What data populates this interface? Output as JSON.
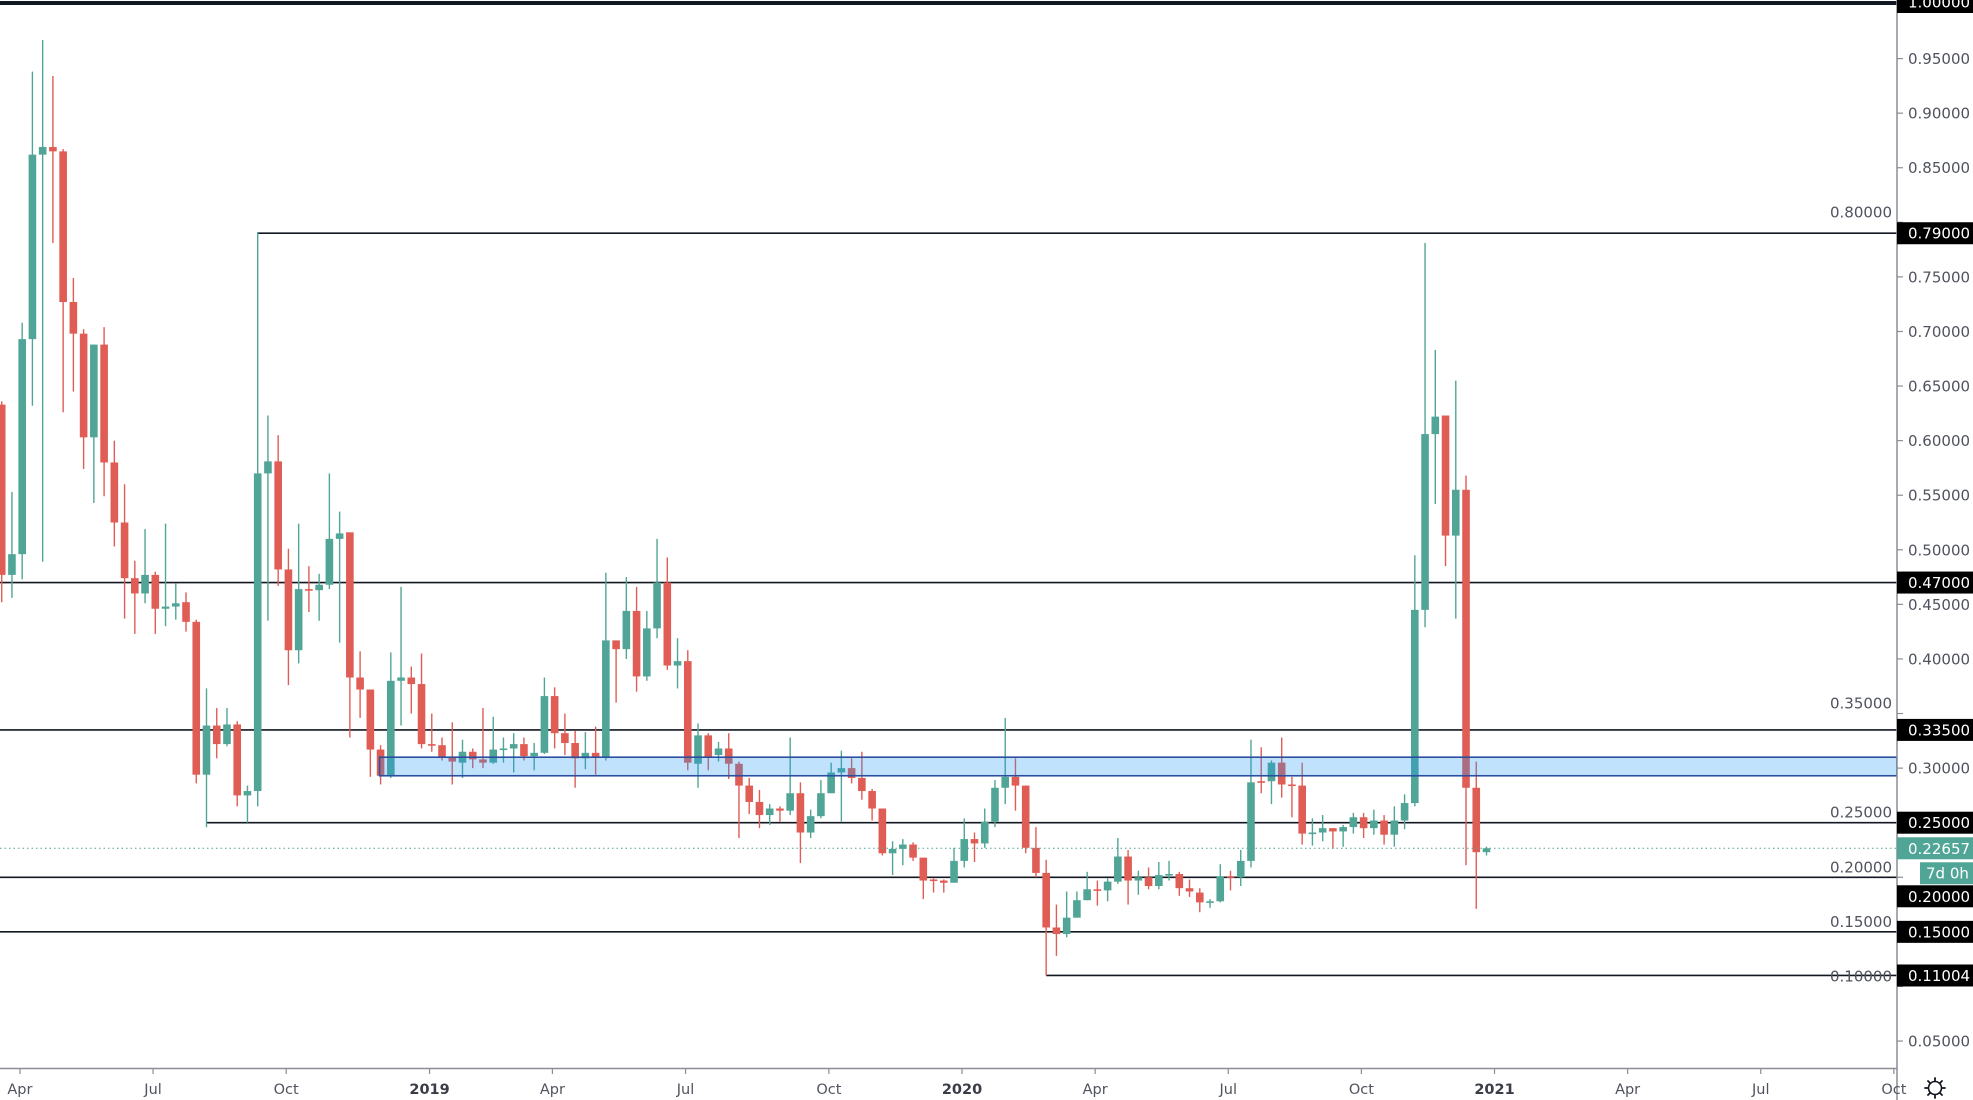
{
  "chart_data": {
    "type": "candlestick",
    "interval": "weekly",
    "colors": {
      "up": "#50a596",
      "down": "#e05d55",
      "line": "#131722",
      "zone_fill": "#2196f3",
      "zone_border": "#2b4f9e",
      "axis_text": "#50535e"
    },
    "ylim": [
      0.0,
      1.0
    ],
    "y_ticks": [
      "0.05000",
      "0.10000",
      "0.15000",
      "0.20000",
      "0.25000",
      "0.30000",
      "0.35000",
      "0.40000",
      "0.45000",
      "0.50000",
      "0.55000",
      "0.60000",
      "0.65000",
      "0.70000",
      "0.75000",
      "0.80000",
      "0.85000",
      "0.90000",
      "0.95000"
    ],
    "x_ticks": [
      {
        "label": "Apr",
        "week": 1,
        "year": false
      },
      {
        "label": "Jul",
        "week": 14,
        "year": false
      },
      {
        "label": "Oct",
        "week": 27,
        "year": false
      },
      {
        "label": "2019",
        "week": 41,
        "year": true
      },
      {
        "label": "Apr",
        "week": 53,
        "year": false
      },
      {
        "label": "Jul",
        "week": 66,
        "year": false
      },
      {
        "label": "Oct",
        "week": 80,
        "year": false
      },
      {
        "label": "2020",
        "week": 93,
        "year": true
      },
      {
        "label": "Apr",
        "week": 106,
        "year": false
      },
      {
        "label": "Jul",
        "week": 119,
        "year": false
      },
      {
        "label": "Oct",
        "week": 132,
        "year": false
      },
      {
        "label": "2021",
        "week": 145,
        "year": true
      },
      {
        "label": "Apr",
        "week": 158,
        "year": false
      },
      {
        "label": "Jul",
        "week": 171,
        "year": false
      },
      {
        "label": "Oct",
        "week": 184,
        "year": false
      }
    ],
    "candles_ohlc": [
      [
        0.633,
        0.636,
        0.452,
        0.477
      ],
      [
        0.477,
        0.553,
        0.456,
        0.496
      ],
      [
        0.496,
        0.708,
        0.473,
        0.693
      ],
      [
        0.693,
        0.938,
        0.632,
        0.862
      ],
      [
        0.862,
        0.967,
        0.489,
        0.869
      ],
      [
        0.869,
        0.934,
        0.781,
        0.865
      ],
      [
        0.865,
        0.867,
        0.626,
        0.727
      ],
      [
        0.727,
        0.749,
        0.645,
        0.698
      ],
      [
        0.698,
        0.702,
        0.574,
        0.603
      ],
      [
        0.603,
        0.688,
        0.543,
        0.688
      ],
      [
        0.688,
        0.704,
        0.549,
        0.58
      ],
      [
        0.58,
        0.6,
        0.503,
        0.525
      ],
      [
        0.525,
        0.56,
        0.437,
        0.474
      ],
      [
        0.474,
        0.49,
        0.423,
        0.46
      ],
      [
        0.46,
        0.519,
        0.451,
        0.477
      ],
      [
        0.477,
        0.48,
        0.423,
        0.446
      ],
      [
        0.446,
        0.524,
        0.43,
        0.448
      ],
      [
        0.448,
        0.469,
        0.436,
        0.451
      ],
      [
        0.452,
        0.461,
        0.425,
        0.434
      ],
      [
        0.434,
        0.436,
        0.286,
        0.294
      ],
      [
        0.294,
        0.373,
        0.246,
        0.339
      ],
      [
        0.339,
        0.355,
        0.309,
        0.322
      ],
      [
        0.322,
        0.355,
        0.32,
        0.34
      ],
      [
        0.34,
        0.343,
        0.265,
        0.275
      ],
      [
        0.275,
        0.284,
        0.25,
        0.279
      ],
      [
        0.279,
        0.791,
        0.265,
        0.57
      ],
      [
        0.57,
        0.623,
        0.435,
        0.581
      ],
      [
        0.581,
        0.605,
        0.467,
        0.482
      ],
      [
        0.482,
        0.501,
        0.376,
        0.408
      ],
      [
        0.408,
        0.524,
        0.396,
        0.464
      ],
      [
        0.464,
        0.485,
        0.443,
        0.463
      ],
      [
        0.463,
        0.478,
        0.435,
        0.468
      ],
      [
        0.468,
        0.57,
        0.464,
        0.51
      ],
      [
        0.51,
        0.535,
        0.415,
        0.515
      ],
      [
        0.516,
        0.516,
        0.328,
        0.383
      ],
      [
        0.383,
        0.407,
        0.346,
        0.372
      ],
      [
        0.372,
        0.372,
        0.292,
        0.317
      ],
      [
        0.317,
        0.321,
        0.285,
        0.293
      ],
      [
        0.293,
        0.406,
        0.291,
        0.38
      ],
      [
        0.38,
        0.466,
        0.339,
        0.383
      ],
      [
        0.383,
        0.393,
        0.35,
        0.377
      ],
      [
        0.377,
        0.405,
        0.318,
        0.322
      ],
      [
        0.322,
        0.35,
        0.315,
        0.321
      ],
      [
        0.321,
        0.328,
        0.307,
        0.31
      ],
      [
        0.31,
        0.342,
        0.285,
        0.306
      ],
      [
        0.305,
        0.326,
        0.291,
        0.315
      ],
      [
        0.315,
        0.318,
        0.3,
        0.308
      ],
      [
        0.308,
        0.355,
        0.3,
        0.305
      ],
      [
        0.305,
        0.347,
        0.304,
        0.317
      ],
      [
        0.317,
        0.328,
        0.305,
        0.318
      ],
      [
        0.318,
        0.332,
        0.296,
        0.322
      ],
      [
        0.322,
        0.328,
        0.307,
        0.311
      ],
      [
        0.311,
        0.323,
        0.298,
        0.314
      ],
      [
        0.314,
        0.383,
        0.313,
        0.366
      ],
      [
        0.366,
        0.374,
        0.318,
        0.332
      ],
      [
        0.332,
        0.35,
        0.312,
        0.323
      ],
      [
        0.323,
        0.334,
        0.282,
        0.309
      ],
      [
        0.309,
        0.333,
        0.299,
        0.314
      ],
      [
        0.314,
        0.338,
        0.294,
        0.31
      ],
      [
        0.31,
        0.479,
        0.307,
        0.417
      ],
      [
        0.417,
        0.417,
        0.36,
        0.409
      ],
      [
        0.409,
        0.475,
        0.4,
        0.444
      ],
      [
        0.444,
        0.466,
        0.37,
        0.384
      ],
      [
        0.384,
        0.444,
        0.38,
        0.428
      ],
      [
        0.428,
        0.51,
        0.419,
        0.47
      ],
      [
        0.47,
        0.493,
        0.39,
        0.394
      ],
      [
        0.394,
        0.419,
        0.373,
        0.398
      ],
      [
        0.398,
        0.408,
        0.298,
        0.305
      ],
      [
        0.304,
        0.341,
        0.282,
        0.33
      ],
      [
        0.33,
        0.332,
        0.298,
        0.31
      ],
      [
        0.312,
        0.324,
        0.306,
        0.318
      ],
      [
        0.318,
        0.332,
        0.29,
        0.304
      ],
      [
        0.304,
        0.306,
        0.236,
        0.284
      ],
      [
        0.284,
        0.291,
        0.258,
        0.269
      ],
      [
        0.269,
        0.28,
        0.245,
        0.257
      ],
      [
        0.257,
        0.267,
        0.248,
        0.263
      ],
      [
        0.263,
        0.265,
        0.251,
        0.261
      ],
      [
        0.261,
        0.328,
        0.257,
        0.277
      ],
      [
        0.277,
        0.287,
        0.213,
        0.241
      ],
      [
        0.241,
        0.262,
        0.236,
        0.256
      ],
      [
        0.256,
        0.289,
        0.254,
        0.277
      ],
      [
        0.277,
        0.305,
        0.277,
        0.296
      ],
      [
        0.296,
        0.316,
        0.251,
        0.3
      ],
      [
        0.3,
        0.309,
        0.286,
        0.291
      ],
      [
        0.291,
        0.315,
        0.271,
        0.279
      ],
      [
        0.279,
        0.281,
        0.252,
        0.263
      ],
      [
        0.263,
        0.263,
        0.22,
        0.222
      ],
      [
        0.222,
        0.233,
        0.202,
        0.226
      ],
      [
        0.226,
        0.235,
        0.211,
        0.23
      ],
      [
        0.23,
        0.232,
        0.215,
        0.218
      ],
      [
        0.218,
        0.218,
        0.18,
        0.197
      ],
      [
        0.198,
        0.199,
        0.186,
        0.197
      ],
      [
        0.197,
        0.198,
        0.186,
        0.195
      ],
      [
        0.195,
        0.227,
        0.195,
        0.215
      ],
      [
        0.215,
        0.254,
        0.209,
        0.235
      ],
      [
        0.235,
        0.241,
        0.214,
        0.231
      ],
      [
        0.231,
        0.263,
        0.227,
        0.251
      ],
      [
        0.251,
        0.289,
        0.246,
        0.282
      ],
      [
        0.282,
        0.346,
        0.267,
        0.292
      ],
      [
        0.292,
        0.309,
        0.261,
        0.284
      ],
      [
        0.284,
        0.284,
        0.222,
        0.227
      ],
      [
        0.227,
        0.246,
        0.2,
        0.204
      ],
      [
        0.204,
        0.216,
        0.11,
        0.154
      ],
      [
        0.154,
        0.175,
        0.128,
        0.148
      ],
      [
        0.148,
        0.187,
        0.145,
        0.163
      ],
      [
        0.163,
        0.187,
        0.163,
        0.179
      ],
      [
        0.179,
        0.205,
        0.179,
        0.189
      ],
      [
        0.189,
        0.197,
        0.174,
        0.188
      ],
      [
        0.188,
        0.199,
        0.178,
        0.196
      ],
      [
        0.196,
        0.236,
        0.194,
        0.219
      ],
      [
        0.219,
        0.225,
        0.175,
        0.197
      ],
      [
        0.197,
        0.206,
        0.184,
        0.2
      ],
      [
        0.2,
        0.209,
        0.189,
        0.192
      ],
      [
        0.192,
        0.214,
        0.189,
        0.202
      ],
      [
        0.202,
        0.215,
        0.197,
        0.203
      ],
      [
        0.203,
        0.205,
        0.183,
        0.19
      ],
      [
        0.19,
        0.198,
        0.182,
        0.187
      ],
      [
        0.186,
        0.19,
        0.168,
        0.177
      ],
      [
        0.177,
        0.18,
        0.172,
        0.178
      ],
      [
        0.178,
        0.212,
        0.177,
        0.201
      ],
      [
        0.201,
        0.206,
        0.188,
        0.2
      ],
      [
        0.2,
        0.225,
        0.192,
        0.215
      ],
      [
        0.215,
        0.326,
        0.209,
        0.287
      ],
      [
        0.288,
        0.319,
        0.277,
        0.287
      ],
      [
        0.288,
        0.307,
        0.267,
        0.305
      ],
      [
        0.305,
        0.328,
        0.273,
        0.285
      ],
      [
        0.285,
        0.292,
        0.255,
        0.284
      ],
      [
        0.284,
        0.305,
        0.23,
        0.24
      ],
      [
        0.24,
        0.254,
        0.229,
        0.241
      ],
      [
        0.241,
        0.257,
        0.233,
        0.245
      ],
      [
        0.245,
        0.245,
        0.226,
        0.242
      ],
      [
        0.242,
        0.248,
        0.228,
        0.246
      ],
      [
        0.246,
        0.259,
        0.24,
        0.255
      ],
      [
        0.255,
        0.259,
        0.236,
        0.245
      ],
      [
        0.245,
        0.262,
        0.239,
        0.252
      ],
      [
        0.252,
        0.257,
        0.23,
        0.239
      ],
      [
        0.239,
        0.265,
        0.228,
        0.252
      ],
      [
        0.252,
        0.276,
        0.244,
        0.268
      ],
      [
        0.268,
        0.495,
        0.265,
        0.445
      ],
      [
        0.445,
        0.781,
        0.429,
        0.606
      ],
      [
        0.606,
        0.683,
        0.542,
        0.622
      ],
      [
        0.623,
        0.623,
        0.485,
        0.513
      ],
      [
        0.513,
        0.655,
        0.437,
        0.555
      ],
      [
        0.555,
        0.568,
        0.211,
        0.282
      ],
      [
        0.282,
        0.306,
        0.171,
        0.223
      ],
      [
        0.223,
        0.228,
        0.22,
        0.22657
      ]
    ],
    "horizontal_levels": [
      {
        "price": 1.0,
        "label": "1.00000",
        "from_week": null,
        "thick": true
      },
      {
        "price": 0.79,
        "label": "0.79000",
        "from_week": 25
      },
      {
        "price": 0.47,
        "label": "0.47000",
        "from_week": null
      },
      {
        "price": 0.335,
        "label": "0.33500",
        "from_week": null
      },
      {
        "price": 0.25,
        "label": "0.25000",
        "from_week": 20
      },
      {
        "price": 0.2,
        "label": "0.20000",
        "from_week": null
      },
      {
        "price": 0.15,
        "label": "0.15000",
        "from_week": null
      },
      {
        "price": 0.11004,
        "label": "0.11004",
        "from_week": 102
      }
    ],
    "zone": {
      "top": 0.31,
      "bottom": 0.293,
      "from_week": 37
    },
    "current_price": {
      "value": 0.22657,
      "label": "0.22657"
    },
    "countdown": "7d 0h"
  },
  "toolbar": {
    "settings_icon": "gear-icon"
  }
}
